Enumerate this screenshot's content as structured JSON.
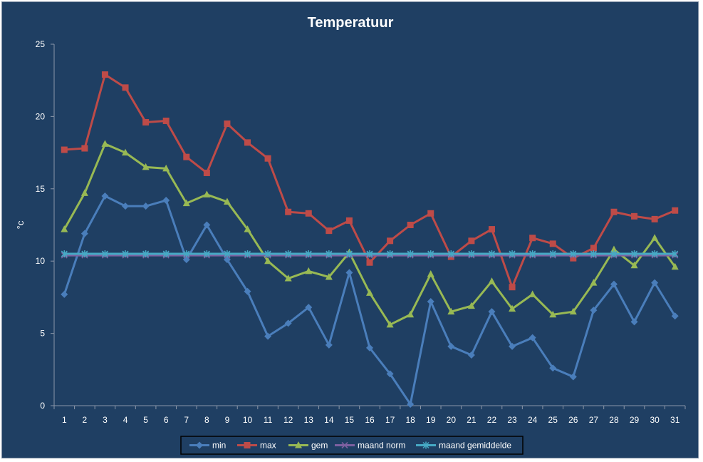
{
  "chart_data": {
    "type": "line",
    "title": "Temperatuur",
    "xlabel": "",
    "ylabel": "°c",
    "ylim": [
      0,
      25
    ],
    "yticks": [
      0,
      5,
      10,
      15,
      20,
      25
    ],
    "grid": false,
    "legend_position": "bottom",
    "background_color": "#1f3f63",
    "categories": [
      "1",
      "2",
      "3",
      "4",
      "5",
      "6",
      "7",
      "8",
      "9",
      "10",
      "11",
      "12",
      "13",
      "14",
      "15",
      "16",
      "17",
      "18",
      "19",
      "20",
      "21",
      "22",
      "23",
      "24",
      "25",
      "26",
      "27",
      "28",
      "29",
      "30",
      "31"
    ],
    "series": [
      {
        "name": "min",
        "color": "#4a7ebb",
        "marker": "diamond",
        "values": [
          7.7,
          11.9,
          14.5,
          13.8,
          13.8,
          14.2,
          10.1,
          12.5,
          10.1,
          7.9,
          4.8,
          5.7,
          6.8,
          4.2,
          9.2,
          4.0,
          2.2,
          0.1,
          7.2,
          4.1,
          3.5,
          6.5,
          4.1,
          4.7,
          2.6,
          2.0,
          6.6,
          8.4,
          5.8,
          8.5,
          6.2
        ]
      },
      {
        "name": "max",
        "color": "#be4b48",
        "marker": "square",
        "values": [
          17.7,
          17.8,
          22.9,
          22.0,
          19.6,
          19.7,
          17.2,
          16.1,
          19.5,
          18.2,
          17.1,
          13.4,
          13.3,
          12.1,
          12.8,
          9.9,
          11.4,
          12.5,
          13.3,
          10.3,
          11.4,
          12.2,
          8.2,
          11.6,
          11.2,
          10.2,
          10.9,
          13.4,
          13.1,
          12.9,
          13.5
        ]
      },
      {
        "name": "gem",
        "color": "#98b954",
        "marker": "triangle",
        "values": [
          12.2,
          14.7,
          18.1,
          17.5,
          16.5,
          16.4,
          14.0,
          14.6,
          14.1,
          12.2,
          10.0,
          8.8,
          9.3,
          8.9,
          10.6,
          7.8,
          5.6,
          6.3,
          9.1,
          6.5,
          6.9,
          8.6,
          6.7,
          7.7,
          6.3,
          6.5,
          8.5,
          10.8,
          9.7,
          11.6,
          9.6
        ]
      },
      {
        "name": "maand norm",
        "color": "#7d60a0",
        "marker": "x",
        "values": [
          10.4,
          10.4,
          10.4,
          10.4,
          10.4,
          10.4,
          10.4,
          10.4,
          10.4,
          10.4,
          10.4,
          10.4,
          10.4,
          10.4,
          10.4,
          10.4,
          10.4,
          10.4,
          10.4,
          10.4,
          10.4,
          10.4,
          10.4,
          10.4,
          10.4,
          10.4,
          10.4,
          10.4,
          10.4,
          10.4,
          10.4
        ]
      },
      {
        "name": "maand gemiddelde",
        "color": "#46aac5",
        "marker": "star",
        "values": [
          10.5,
          10.5,
          10.5,
          10.5,
          10.5,
          10.5,
          10.5,
          10.5,
          10.5,
          10.5,
          10.5,
          10.5,
          10.5,
          10.5,
          10.5,
          10.5,
          10.5,
          10.5,
          10.5,
          10.5,
          10.5,
          10.5,
          10.5,
          10.5,
          10.5,
          10.5,
          10.5,
          10.5,
          10.5,
          10.5,
          10.5
        ]
      }
    ]
  }
}
